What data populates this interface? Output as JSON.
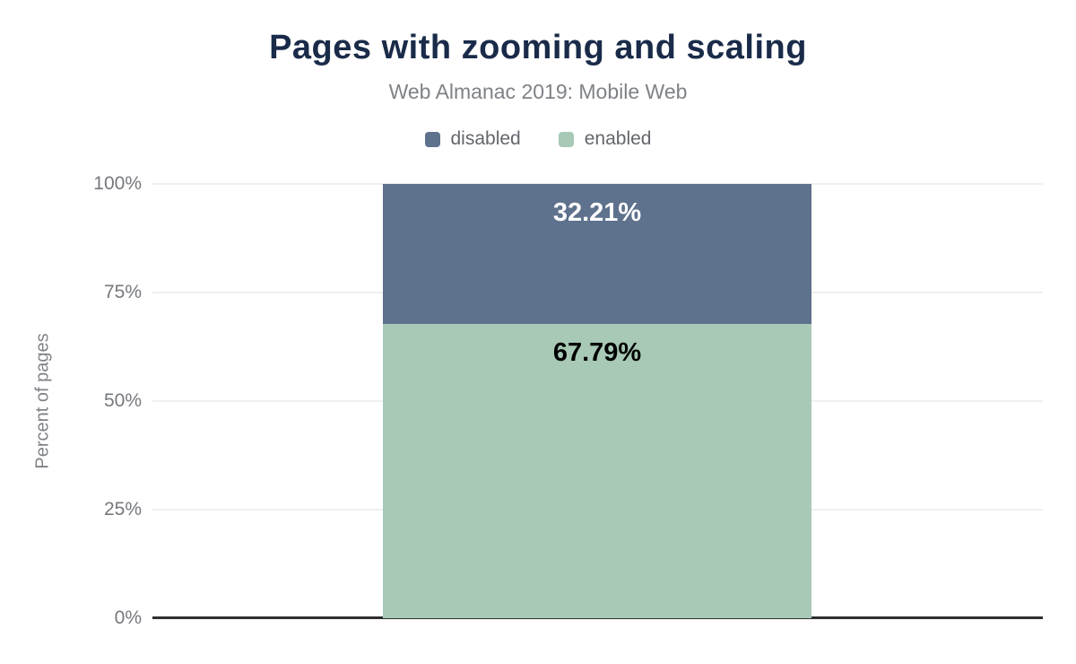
{
  "header": {
    "title": "Pages with zooming and scaling",
    "subtitle": "Web Almanac 2019: Mobile Web"
  },
  "legend": [
    {
      "label": "disabled",
      "color": "#5e718d"
    },
    {
      "label": "enabled",
      "color": "#a7c9b6"
    }
  ],
  "y_axis": {
    "label": "Percent of pages",
    "tick_labels": [
      "0%",
      "25%",
      "50%",
      "75%",
      "100%"
    ]
  },
  "chart_data": {
    "type": "bar",
    "stacked": true,
    "categories": [
      ""
    ],
    "series": [
      {
        "name": "disabled",
        "values": [
          32.21
        ],
        "color": "#5e718d",
        "label_color": "#ffffff"
      },
      {
        "name": "enabled",
        "values": [
          67.79
        ],
        "color": "#a7c9b6",
        "label_color": "#000000"
      }
    ],
    "data_labels": [
      "32.21%",
      "67.79%"
    ],
    "title": "Pages with zooming and scaling",
    "subtitle": "Web Almanac 2019: Mobile Web",
    "xlabel": "",
    "ylabel": "Percent of pages",
    "ylim": [
      0,
      100
    ],
    "y_ticks": [
      0,
      25,
      50,
      75,
      100
    ],
    "grid": true,
    "legend_position": "top"
  },
  "colors": {
    "title_text": "#1a2b49",
    "subtitle_text": "#7e8287",
    "axis_text": "#75787d",
    "gridline": "#efefef",
    "axis_line": "#2f2f2f",
    "background": "#ffffff"
  }
}
